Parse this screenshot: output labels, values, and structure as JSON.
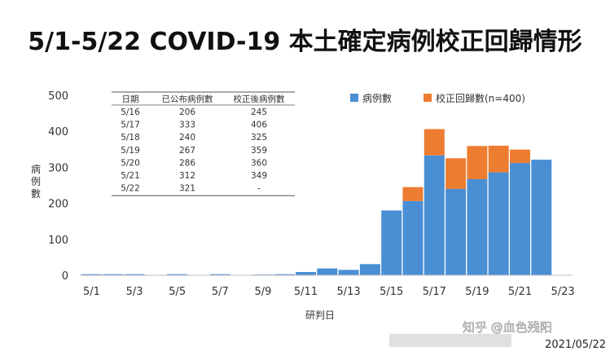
{
  "title": "5/1-5/22 COVID-19 本土確定病例校正回歸情形",
  "chart_data": {
    "type": "bar",
    "stacked": true,
    "x": [
      "5/1",
      "5/2",
      "5/3",
      "5/4",
      "5/5",
      "5/6",
      "5/7",
      "5/8",
      "5/9",
      "5/10",
      "5/11",
      "5/12",
      "5/13",
      "5/14",
      "5/15",
      "5/16",
      "5/17",
      "5/18",
      "5/19",
      "5/20",
      "5/21",
      "5/22"
    ],
    "xticks": [
      "5/1",
      "5/3",
      "5/5",
      "5/7",
      "5/9",
      "5/11",
      "5/13",
      "5/15",
      "5/17",
      "5/19",
      "5/21",
      "5/23"
    ],
    "series": [
      {
        "name": "病例數",
        "color": "#4a8fd4",
        "values": [
          3,
          3,
          3,
          0,
          3,
          0,
          3,
          0,
          2,
          3,
          9,
          19,
          15,
          31,
          180,
          206,
          333,
          240,
          267,
          286,
          312,
          321
        ]
      },
      {
        "name": "校正回歸數(n=400)",
        "color": "#ed7d31",
        "values": [
          0,
          0,
          0,
          0,
          0,
          0,
          0,
          0,
          0,
          0,
          0,
          0,
          0,
          0,
          0,
          39,
          73,
          85,
          92,
          74,
          37,
          0
        ]
      }
    ],
    "ylim": [
      0,
      500
    ],
    "yticks": [
      0,
      100,
      200,
      300,
      400,
      500
    ],
    "xlabel": "研判日",
    "ylabel": "病例數",
    "legend": "top-right",
    "table": {
      "headers": [
        "日期",
        "已公布病例數",
        "校正後病例數"
      ],
      "rows": [
        [
          "5/16",
          "206",
          "245"
        ],
        [
          "5/17",
          "333",
          "406"
        ],
        [
          "5/18",
          "240",
          "325"
        ],
        [
          "5/19",
          "267",
          "359"
        ],
        [
          "5/20",
          "286",
          "360"
        ],
        [
          "5/21",
          "312",
          "349"
        ],
        [
          "5/22",
          "321",
          "-"
        ]
      ]
    }
  },
  "watermark": "知乎 @血色残阳",
  "date_stamp": "2021/05/22"
}
